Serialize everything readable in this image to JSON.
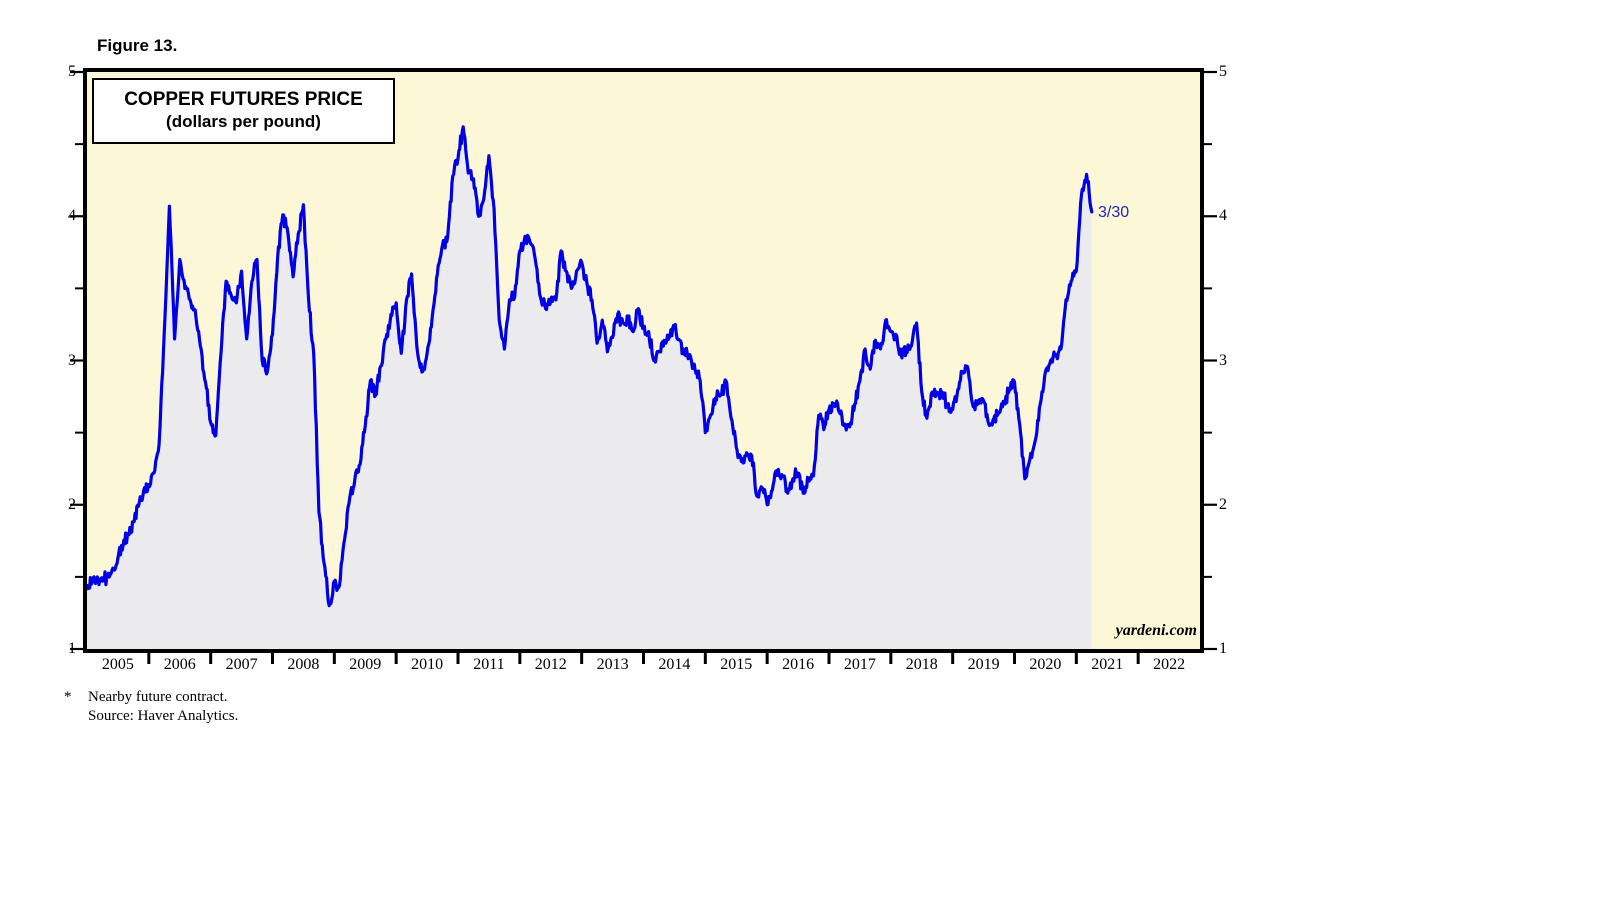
{
  "figure_label": "Figure 13.",
  "chart": {
    "title_line1": "COPPER FUTURES PRICE",
    "title_line2": "(dollars per pound)",
    "watermark": "yardeni.com",
    "last_point_label": "3/30",
    "colors": {
      "line": "#0000E6",
      "fill": "#EBEBEE",
      "plot_bg": "#FCF8D7",
      "axis": "#000000",
      "annotation_blue": "#2222CD"
    }
  },
  "footnotes": {
    "asterisk": "*",
    "line1": "Nearby future contract.",
    "line2": "Source: Haver Analytics."
  },
  "chart_data": {
    "type": "line",
    "title": "COPPER FUTURES PRICE",
    "subtitle": "(dollars per pound)",
    "series_name": "Copper nearby futures price (dollars per pound)",
    "xlim": [
      2005,
      2023
    ],
    "ylim": [
      1,
      5
    ],
    "y_major_ticks": [
      "5",
      "4",
      "3",
      "2",
      "1"
    ],
    "y_major_values": [
      5,
      4,
      3,
      2,
      1
    ],
    "y_minor_values": [
      4.5,
      3.5,
      2.5,
      1.5
    ],
    "x_years": [
      "2005",
      "2006",
      "2007",
      "2008",
      "2009",
      "2010",
      "2011",
      "2012",
      "2013",
      "2014",
      "2015",
      "2016",
      "2017",
      "2018",
      "2019",
      "2020",
      "2021",
      "2022"
    ],
    "grid": false,
    "legend": "none",
    "start_year": 2005,
    "points_per_year": 12,
    "values": [
      1.44,
      1.46,
      1.5,
      1.47,
      1.5,
      1.56,
      1.63,
      1.72,
      1.8,
      1.88,
      1.99,
      2.1,
      2.14,
      2.22,
      2.42,
      3.2,
      4.07,
      3.15,
      3.7,
      3.5,
      3.42,
      3.35,
      3.1,
      2.85,
      2.57,
      2.48,
      3.05,
      3.55,
      3.45,
      3.4,
      3.62,
      3.15,
      3.55,
      3.7,
      3.0,
      2.92,
      3.18,
      3.72,
      4.01,
      3.88,
      3.58,
      3.88,
      4.08,
      3.42,
      3.05,
      1.95,
      1.6,
      1.3,
      1.47,
      1.44,
      1.76,
      2.05,
      2.18,
      2.28,
      2.55,
      2.86,
      2.76,
      2.96,
      3.15,
      3.32,
      3.4,
      3.05,
      3.42,
      3.6,
      3.1,
      2.92,
      3.05,
      3.3,
      3.6,
      3.8,
      3.86,
      4.28,
      4.4,
      4.62,
      4.3,
      4.26,
      4.0,
      4.12,
      4.42,
      4.05,
      3.28,
      3.08,
      3.42,
      3.44,
      3.76,
      3.86,
      3.82,
      3.7,
      3.44,
      3.36,
      3.42,
      3.42,
      3.76,
      3.62,
      3.5,
      3.62,
      3.68,
      3.54,
      3.42,
      3.12,
      3.28,
      3.06,
      3.16,
      3.32,
      3.26,
      3.3,
      3.2,
      3.36,
      3.22,
      3.2,
      3.0,
      3.06,
      3.14,
      3.16,
      3.24,
      3.14,
      3.04,
      3.04,
      2.94,
      2.86,
      2.5,
      2.62,
      2.74,
      2.76,
      2.86,
      2.6,
      2.4,
      2.3,
      2.36,
      2.34,
      2.06,
      2.12,
      2.0,
      2.1,
      2.24,
      2.2,
      2.08,
      2.18,
      2.22,
      2.08,
      2.18,
      2.2,
      2.62,
      2.52,
      2.66,
      2.7,
      2.64,
      2.56,
      2.54,
      2.7,
      2.86,
      3.08,
      2.94,
      3.14,
      3.08,
      3.28,
      3.2,
      3.18,
      3.04,
      3.06,
      3.1,
      3.26,
      2.78,
      2.6,
      2.78,
      2.78,
      2.78,
      2.68,
      2.66,
      2.8,
      2.92,
      2.94,
      2.68,
      2.7,
      2.72,
      2.56,
      2.6,
      2.64,
      2.7,
      2.8,
      2.85,
      2.56,
      2.18,
      2.32,
      2.44,
      2.7,
      2.92,
      3.0,
      3.04,
      3.08,
      3.42,
      3.55,
      3.62,
      4.15,
      4.29,
      4.03
    ],
    "last_point": {
      "date_label": "3/30",
      "value": 4.03
    },
    "annotations": [
      {
        "text": "3/30",
        "x": 2021.25,
        "y": 4.03
      }
    ]
  }
}
